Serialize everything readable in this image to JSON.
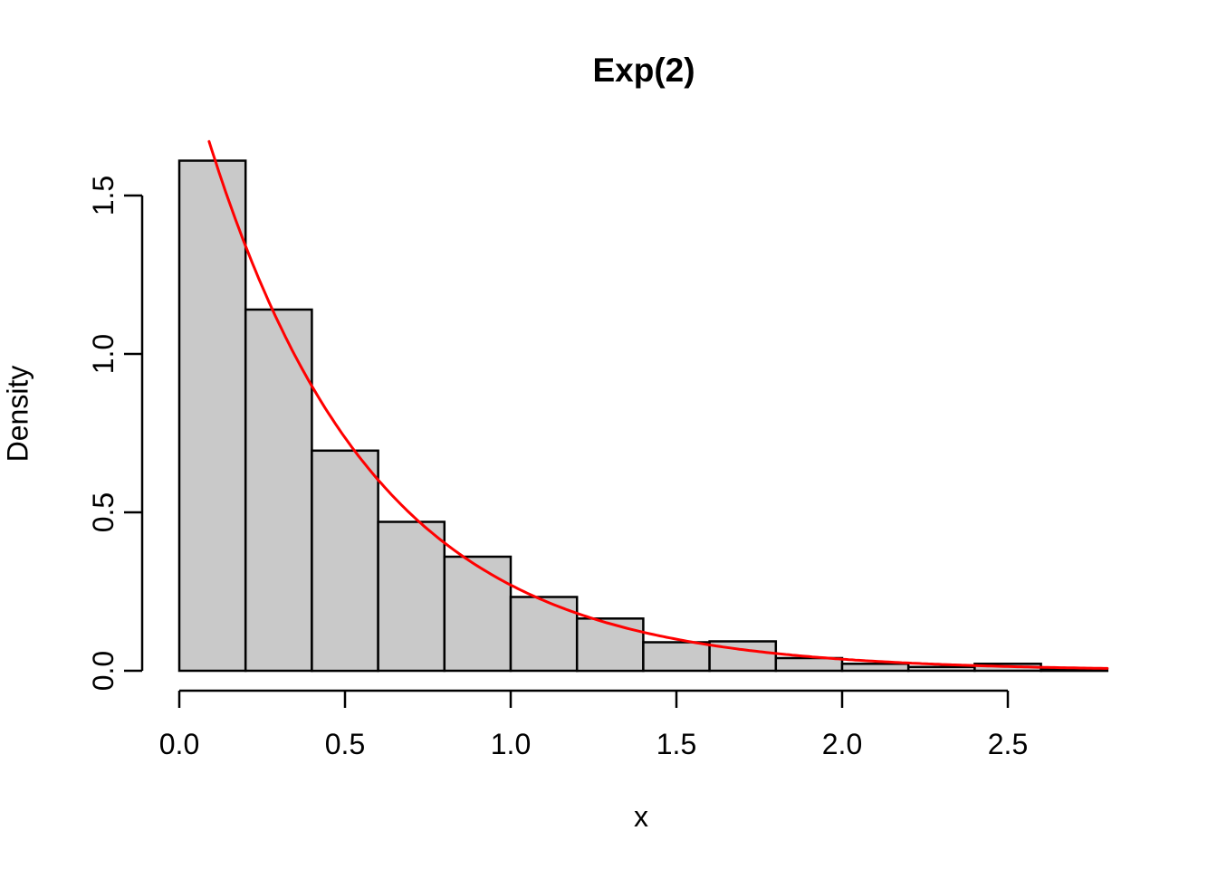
{
  "title": "Exp(2)",
  "x_axis": {
    "label": "x",
    "tick_labels": [
      "0.0",
      "0.5",
      "1.0",
      "1.5",
      "2.0",
      "2.5"
    ],
    "tick_values": [
      0,
      0.5,
      1.0,
      1.5,
      2.0,
      2.5
    ]
  },
  "y_axis": {
    "label": "Density",
    "tick_labels": [
      "0.0",
      "0.5",
      "1.0",
      "1.5"
    ],
    "tick_values": [
      0,
      0.5,
      1.0,
      1.5
    ]
  },
  "chart_data": {
    "type": "bar",
    "subtype": "histogram-with-density-curve",
    "title": "Exp(2)",
    "xlabel": "x",
    "ylabel": "Density",
    "xlim": [
      0,
      2.8
    ],
    "ylim": [
      0,
      1.67
    ],
    "grid": false,
    "legend": "none",
    "bin_width": 0.2,
    "bin_edges": [
      0.0,
      0.2,
      0.4,
      0.6,
      0.8,
      1.0,
      1.2,
      1.4,
      1.6,
      1.8,
      2.0,
      2.2,
      2.4,
      2.6,
      2.8
    ],
    "densities": [
      1.61,
      1.14,
      0.695,
      0.47,
      0.36,
      0.233,
      0.165,
      0.09,
      0.093,
      0.04,
      0.022,
      0.012,
      0.022,
      0.005
    ],
    "bar_fill": "#c9c9c9",
    "bar_stroke": "#000000",
    "curve": {
      "name": "exponential-density",
      "formula": "f(x) = 2*exp(-2*x)",
      "rate": 2,
      "x_max": 2.8,
      "color": "#ff0000"
    },
    "axis_color": "#000000"
  }
}
